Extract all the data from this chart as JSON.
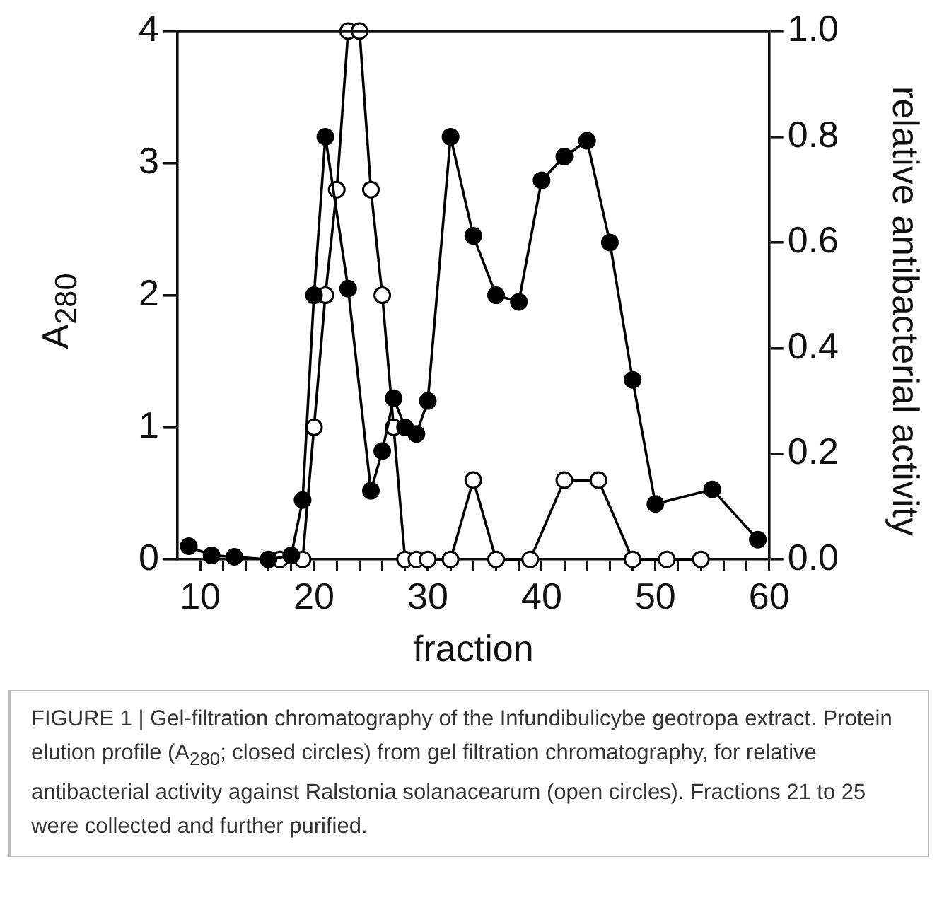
{
  "chart_data": {
    "type": "line",
    "xlabel": "fraction",
    "ylabel": "A$_{280}$",
    "y2label": "relative antibacterial activity",
    "xlim": [
      8,
      60
    ],
    "xticks": [
      {
        "value": 10,
        "label": "10"
      },
      {
        "value": 12,
        "label": null
      },
      {
        "value": 14,
        "label": null
      },
      {
        "value": 16,
        "label": null
      },
      {
        "value": 18,
        "label": null
      },
      {
        "value": 20,
        "label": "20"
      },
      {
        "value": 22,
        "label": null
      },
      {
        "value": 24,
        "label": null
      },
      {
        "value": 26,
        "label": null
      },
      {
        "value": 28,
        "label": null
      },
      {
        "value": 30,
        "label": "30"
      },
      {
        "value": 32,
        "label": null
      },
      {
        "value": 34,
        "label": null
      },
      {
        "value": 36,
        "label": null
      },
      {
        "value": 38,
        "label": null
      },
      {
        "value": 40,
        "label": "40"
      },
      {
        "value": 42,
        "label": null
      },
      {
        "value": 44,
        "label": null
      },
      {
        "value": 46,
        "label": null
      },
      {
        "value": 48,
        "label": null
      },
      {
        "value": 50,
        "label": "50"
      },
      {
        "value": 52,
        "label": null
      },
      {
        "value": 54,
        "label": null
      },
      {
        "value": 56,
        "label": null
      },
      {
        "value": 58,
        "label": null
      },
      {
        "value": 60,
        "label": "60"
      }
    ],
    "ylim": [
      0,
      4
    ],
    "yticks": [
      0,
      1,
      2,
      3,
      4
    ],
    "y2lim": [
      0,
      1
    ],
    "y2ticks": [
      {
        "value": 0,
        "label": "0.0"
      },
      {
        "value": 0.2,
        "label": "0.2"
      },
      {
        "value": 0.4,
        "label": "0.4"
      },
      {
        "value": 0.6,
        "label": "0.6"
      },
      {
        "value": 0.8,
        "label": "0.8"
      },
      {
        "value": 1,
        "label": "1.0"
      }
    ],
    "grid": false,
    "legend": false,
    "marker": "circle",
    "line_style": "solid",
    "series": [
      {
        "color": "#000000",
        "x": [
          9,
          11,
          13,
          16,
          18,
          19,
          20,
          21,
          23,
          25,
          26,
          27,
          28,
          29,
          30,
          32,
          34,
          36,
          38,
          40,
          42,
          44,
          46,
          48,
          50,
          55,
          59
        ],
        "values": [
          0.1,
          0.03,
          0.02,
          0,
          0.03,
          0.45,
          2.0,
          3.2,
          2.05,
          0.52,
          0.82,
          1.22,
          1.0,
          0.95,
          1.2,
          3.2,
          2.45,
          2.0,
          1.95,
          2.87,
          3.05,
          3.17,
          2.4,
          1.36,
          0.42,
          0.53,
          0.15
        ]
      },
      {
        "color": "#ffffff",
        "axis": "y2",
        "x": [
          17,
          19,
          20,
          21,
          22,
          23,
          24,
          25,
          26,
          27,
          28,
          29,
          30,
          32,
          34,
          36,
          39,
          42,
          45,
          48,
          51,
          54
        ],
        "values": [
          0,
          0,
          0.25,
          0.5,
          0.7,
          1.0,
          1.0,
          0.7,
          0.5,
          0.25,
          0,
          0,
          0,
          0,
          0.15,
          0,
          0,
          0.15,
          0.15,
          0,
          0,
          0
        ]
      }
    ],
    "annotations": [
      "FIGURE 1 | Gel-filtration chromatography of the Infundibulicybe geotropa extract. Protein elution profile (A$_{280}$; closed circles) from gel filtration chromatography, for relative antibacterial activity against Ralstonia solanacearum (open circles). Fractions 21 to 25 were collected and further purified."
    ]
  }
}
